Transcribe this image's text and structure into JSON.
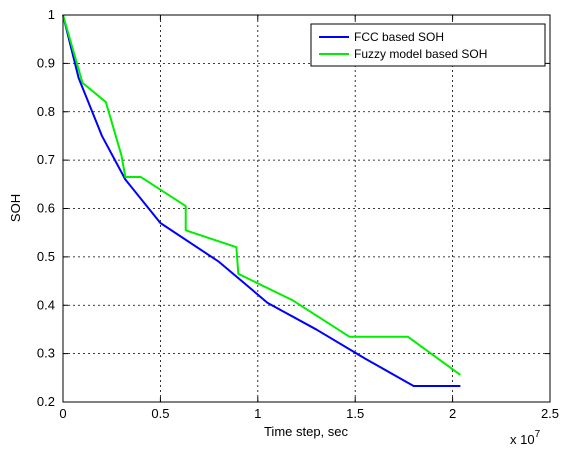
{
  "chart_data": {
    "type": "line",
    "xlabel": "Time step, sec",
    "ylabel": "SOH",
    "x_multiplier_label": "x 10",
    "x_multiplier_exponent": "7",
    "xlim": [
      0,
      2.5
    ],
    "ylim": [
      0.2,
      1.0
    ],
    "xticks": [
      "0",
      "0.5",
      "1",
      "1.5",
      "2",
      "2.5"
    ],
    "yticks": [
      "0.2",
      "0.3",
      "0.4",
      "0.5",
      "0.6",
      "0.7",
      "0.8",
      "0.9",
      "1"
    ],
    "grid": true,
    "legend_position": "top-right",
    "series": [
      {
        "name": "FCC based SOH",
        "color": "#0000ff",
        "x": [
          0,
          0.08,
          0.2,
          0.32,
          0.5,
          0.8,
          1.05,
          1.3,
          1.55,
          1.8,
          2.04
        ],
        "y": [
          1.0,
          0.87,
          0.75,
          0.66,
          0.57,
          0.49,
          0.405,
          0.35,
          0.29,
          0.233,
          0.233
        ]
      },
      {
        "name": "Fuzzy model based SOH",
        "color": "#00ee00",
        "x": [
          0,
          0.1,
          0.22,
          0.3,
          0.32,
          0.4,
          0.63,
          0.63,
          0.89,
          0.9,
          1.18,
          1.47,
          1.77,
          2.04
        ],
        "y": [
          1.0,
          0.86,
          0.82,
          0.71,
          0.665,
          0.665,
          0.605,
          0.555,
          0.52,
          0.465,
          0.41,
          0.335,
          0.335,
          0.256
        ]
      }
    ]
  }
}
